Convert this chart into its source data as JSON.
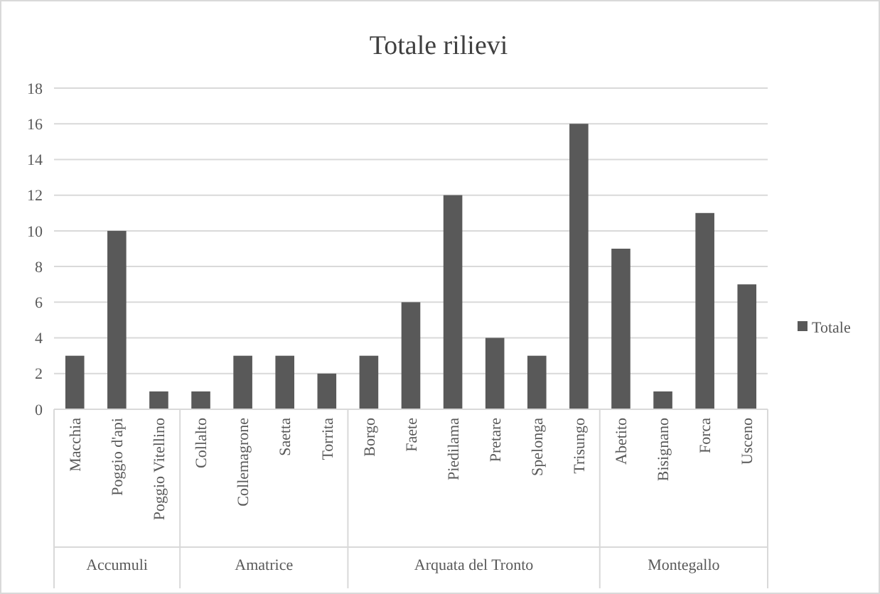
{
  "chart_data": {
    "type": "bar",
    "title": "Totale rilievi",
    "categories": [
      "Macchia",
      "Poggio d'api",
      "Poggio Vitellino",
      "Collalto",
      "Collemagrone",
      "Saetta",
      "Torrita",
      "Borgo",
      "Faete",
      "Piedilama",
      "Pretare",
      "Spelonga",
      "Trisungo",
      "Abetito",
      "Bisignano",
      "Forca",
      "Usceno"
    ],
    "series": [
      {
        "name": "Totale",
        "color": "#595959",
        "values": [
          3,
          10,
          1,
          1,
          3,
          3,
          2,
          3,
          6,
          12,
          4,
          3,
          16,
          9,
          1,
          11,
          7
        ]
      }
    ],
    "ylim": [
      0,
      18
    ],
    "yticks": [
      0,
      2,
      4,
      6,
      8,
      10,
      12,
      14,
      16,
      18
    ],
    "grid": "y",
    "legend": "right",
    "annotations": [
      "Accumuli",
      "Amatrice",
      "Arquata del Tronto",
      "Montegallo"
    ]
  }
}
